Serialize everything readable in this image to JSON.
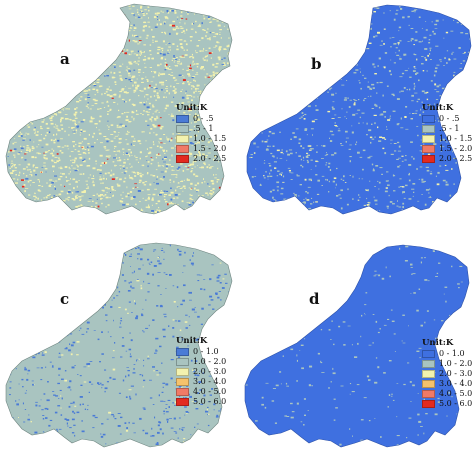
{
  "panels": [
    {
      "letter": "a",
      "legend_title": "Unit:K",
      "legend": [
        {
          "label": "0 - .5",
          "color": "#4a7bd6"
        },
        {
          "label": ".5 - 1",
          "color": "#a9c4c0"
        },
        {
          "label": "1.0 - 1.5",
          "color": "#f3f2ae"
        },
        {
          "label": "1.5 - 2.0",
          "color": "#f07a66"
        },
        {
          "label": "2.0 - 2.5",
          "color": "#e32a1f"
        }
      ],
      "base_color": "#a9c4c0",
      "speckles": [
        {
          "color": "#f3f2ae",
          "fraction": 0.3
        },
        {
          "color": "#4a7bd6",
          "fraction": 0.03
        },
        {
          "color": "#e32a1f",
          "fraction": 0.008
        }
      ]
    },
    {
      "letter": "b",
      "legend_title": "Unit:K",
      "legend": [
        {
          "label": "0 - .5",
          "color": "#3f70e0"
        },
        {
          "label": ".5 - 1",
          "color": "#a9c4c0"
        },
        {
          "label": "1.0 - 1.5",
          "color": "#f3f2ae"
        },
        {
          "label": "1.5 - 2.0",
          "color": "#f07a66"
        },
        {
          "label": "2.0 - 2.5",
          "color": "#e32a1f"
        }
      ],
      "base_color": "#3f70e0",
      "speckles": [
        {
          "color": "#a9c4c0",
          "fraction": 0.12
        },
        {
          "color": "#f3f2ae",
          "fraction": 0.02
        }
      ]
    },
    {
      "letter": "c",
      "legend_title": "Unit:K",
      "legend": [
        {
          "label": "0 - 1.0",
          "color": "#4a7bd6"
        },
        {
          "label": "1.0 - 2.0",
          "color": "#a9c4c0"
        },
        {
          "label": "2.0 - 3.0",
          "color": "#f3f2ae"
        },
        {
          "label": "3.0 - 4.0",
          "color": "#f5c26b"
        },
        {
          "label": "4.0 - 5.0",
          "color": "#f07a66"
        },
        {
          "label": "5.0 - 6.0",
          "color": "#e32a1f"
        }
      ],
      "base_color": "#a9c4c0",
      "speckles": [
        {
          "color": "#4a7bd6",
          "fraction": 0.1
        },
        {
          "color": "#f3f2ae",
          "fraction": 0.01
        }
      ]
    },
    {
      "letter": "d",
      "legend_title": "Unit:K",
      "legend": [
        {
          "label": "0 - 1.0",
          "color": "#3f70e0"
        },
        {
          "label": "1.0 - 2.0",
          "color": "#a9c4c0"
        },
        {
          "label": "2.0 - 3.0",
          "color": "#f3f2ae"
        },
        {
          "label": "3.0 - 4.0",
          "color": "#f5c26b"
        },
        {
          "label": "4.0 - 5.0",
          "color": "#f07a66"
        },
        {
          "label": "5.0 - 6.0",
          "color": "#e32a1f"
        }
      ],
      "base_color": "#3f70e0",
      "speckles": [
        {
          "color": "#a9c4c0",
          "fraction": 0.04
        }
      ]
    }
  ]
}
